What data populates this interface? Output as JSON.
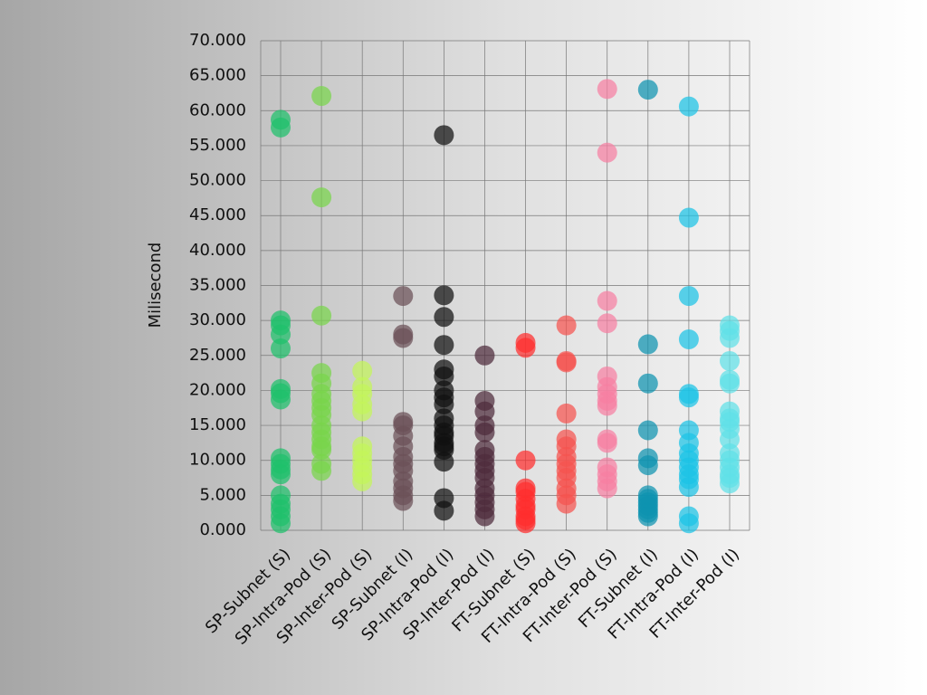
{
  "chart_data": {
    "type": "strip",
    "ylabel": "Milisecond",
    "categories": [
      "SP-Subnet (S)",
      "SP-Intra-Pod (S)",
      "SP-Inter-Pod (S)",
      "SP-Subnet (I)",
      "SP-Intra-Pod (I)",
      "SP-Inter-Pod (I)",
      "FT-Subnet (S)",
      "FT-Intra-Pod (S)",
      "FT-Inter-Pod (S)",
      "FT-Subnet (I)",
      "FT-Intra-Pod (I)",
      "FT-Inter-Pod (I)"
    ],
    "colors": [
      "#1fc16b",
      "#78d64b",
      "#c3f55a",
      "#6b5058",
      "#111111",
      "#4e2b3c",
      "#ff2e2e",
      "#f5534f",
      "#f77fa2",
      "#0e93b0",
      "#1cc3e6",
      "#5fe0e8"
    ],
    "values": [
      [
        58.7,
        57.6,
        30,
        29.3,
        28,
        26,
        20.2,
        19.6,
        18.7,
        10.3,
        9.5,
        8.7,
        8,
        5,
        3.8,
        3,
        2,
        1
      ],
      [
        62.1,
        47.6,
        30.7,
        22.5,
        21,
        19.5,
        18.5,
        17.5,
        16.5,
        15,
        14,
        13,
        12,
        11.5,
        9.5,
        8.5
      ],
      [
        22.8,
        20.5,
        19.5,
        18,
        17,
        12,
        11,
        10,
        9,
        8,
        7
      ],
      [
        33.5,
        28,
        27.5,
        15.5,
        15,
        13.5,
        12,
        10.5,
        9.5,
        8.5,
        7,
        6,
        5,
        4.2
      ],
      [
        56.5,
        33.6,
        30.5,
        26.5,
        23,
        22,
        20,
        19,
        18,
        16,
        15,
        14,
        13.5,
        12.5,
        12,
        11.5,
        9.8,
        4.6,
        2.8
      ],
      [
        25,
        18.5,
        17,
        15,
        14,
        11.5,
        10.5,
        9.5,
        8.5,
        7.5,
        6,
        5,
        4,
        3,
        2
      ],
      [
        26.8,
        26.1,
        10,
        6,
        5.5,
        4.5,
        3.5,
        3,
        2,
        1.5,
        1
      ],
      [
        29.3,
        24.2,
        24,
        16.7,
        13,
        12,
        10.5,
        9.5,
        8.5,
        7.5,
        6,
        5,
        3.8
      ],
      [
        63.1,
        54,
        32.8,
        29.6,
        22,
        20.5,
        19.5,
        18.5,
        17.8,
        13,
        12.5,
        9,
        8,
        7,
        6
      ],
      [
        63,
        26.6,
        21,
        14.3,
        10.3,
        9.3,
        5,
        4.5,
        4,
        3.5,
        3,
        2.5,
        2
      ],
      [
        60.6,
        44.7,
        33.5,
        27.3,
        19.5,
        19,
        14.3,
        12.5,
        11,
        10,
        9,
        8,
        7.3,
        6.2,
        2,
        1
      ],
      [
        29.3,
        28.5,
        27.5,
        24.2,
        21.5,
        21,
        17,
        16,
        15.5,
        14.5,
        13,
        11,
        10,
        9,
        8,
        7.5,
        6.7
      ]
    ],
    "ylim": [
      0,
      70
    ],
    "yticks": [
      {
        "value": 0,
        "label": "0.000"
      },
      {
        "value": 5,
        "label": "5.000"
      },
      {
        "value": 10,
        "label": "10.000"
      },
      {
        "value": 15,
        "label": "15.000"
      },
      {
        "value": 20,
        "label": "20.000"
      },
      {
        "value": 25,
        "label": "25.000"
      },
      {
        "value": 30,
        "label": "30.000"
      },
      {
        "value": 35,
        "label": "35.000"
      },
      {
        "value": 40,
        "label": "40.000"
      },
      {
        "value": 45,
        "label": "45.000"
      },
      {
        "value": 50,
        "label": "50.000"
      },
      {
        "value": 55,
        "label": "55.000"
      },
      {
        "value": 60,
        "label": "60.000"
      },
      {
        "value": 65,
        "label": "65.000"
      },
      {
        "value": 70,
        "label": "70.000"
      }
    ],
    "grid": true
  }
}
